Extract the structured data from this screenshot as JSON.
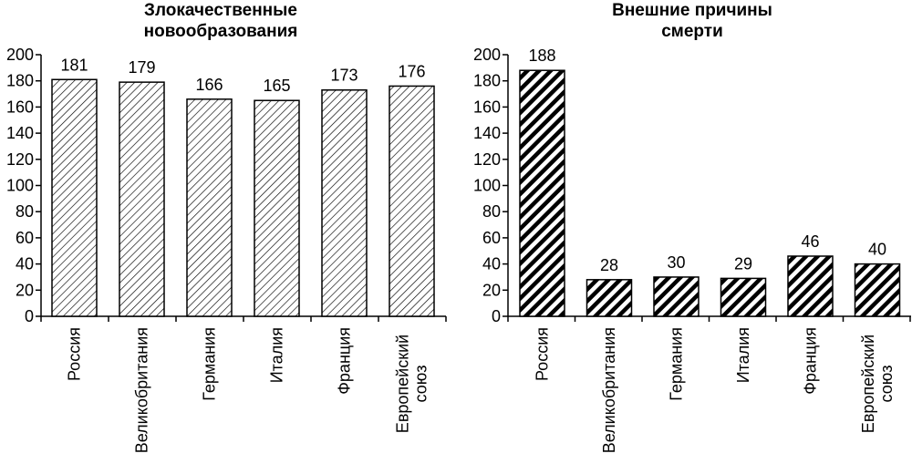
{
  "chart_data": [
    {
      "type": "bar",
      "title_lines": [
        "Злокачественные",
        "новообразования"
      ],
      "categories": [
        [
          "Россия"
        ],
        [
          "Великобритания"
        ],
        [
          "Германия"
        ],
        [
          "Италия"
        ],
        [
          "Франция"
        ],
        [
          "Европейский",
          "союз"
        ]
      ],
      "values": [
        181,
        179,
        166,
        165,
        173,
        176
      ],
      "value_labels": [
        "181",
        "179",
        "166",
        "165",
        "173",
        "176"
      ],
      "ylim": [
        0,
        200
      ],
      "yticks": [
        "0",
        "20",
        "40",
        "60",
        "80",
        "100",
        "120",
        "140",
        "160",
        "180",
        "200"
      ],
      "pattern": "light-hatch",
      "grid": false,
      "legend": false
    },
    {
      "type": "bar",
      "title_lines": [
        "Внешние причины",
        "смерти"
      ],
      "categories": [
        [
          "Россия"
        ],
        [
          "Великобритания"
        ],
        [
          "Германия"
        ],
        [
          "Италия"
        ],
        [
          "Франция"
        ],
        [
          "Европейский",
          "союз"
        ]
      ],
      "values": [
        188,
        28,
        30,
        29,
        46,
        40
      ],
      "value_labels": [
        "188",
        "28",
        "30",
        "29",
        "46",
        "40"
      ],
      "ylim": [
        0,
        200
      ],
      "yticks": [
        "0",
        "20",
        "40",
        "60",
        "80",
        "100",
        "120",
        "140",
        "160",
        "180",
        "200"
      ],
      "pattern": "bold-hatch",
      "grid": false,
      "legend": false
    }
  ]
}
